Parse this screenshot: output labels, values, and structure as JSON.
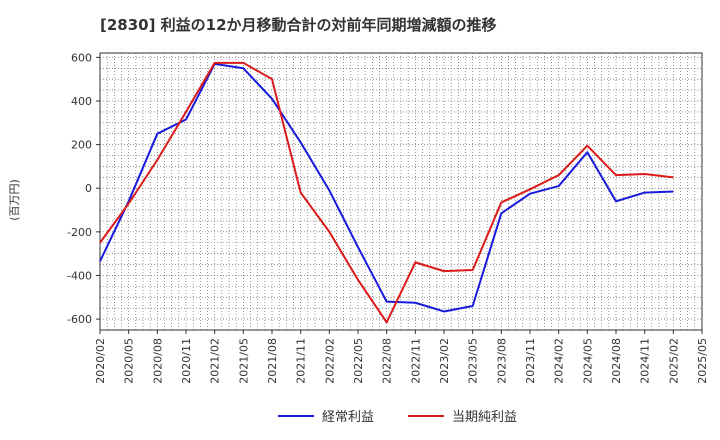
{
  "chart_data": {
    "type": "line",
    "title": "[2830]  利益の12か月移動合計の対前年同期増減額の推移",
    "ylabel": "(百万円)",
    "xlabel": "",
    "ylim": [
      -650,
      620
    ],
    "yticks": [
      600,
      400,
      200,
      0,
      -200,
      -400,
      -600
    ],
    "x_ticks": [
      "2020/02",
      "2020/05",
      "2020/08",
      "2020/11",
      "2021/02",
      "2021/05",
      "2021/08",
      "2021/11",
      "2022/02",
      "2022/05",
      "2022/08",
      "2022/11",
      "2023/02",
      "2023/05",
      "2023/08",
      "2023/11",
      "2024/02",
      "2024/05",
      "2024/08",
      "2024/11",
      "2025/02",
      "2025/05"
    ],
    "grid": true,
    "legend_position": "bottom-center",
    "series": [
      {
        "name": "経常利益",
        "color": "#1a1adc",
        "values": [
          -335,
          -60,
          250,
          315,
          570,
          550,
          410,
          210,
          -10,
          -270,
          -520,
          -525,
          -565,
          -540,
          -115,
          -25,
          10,
          165,
          -60,
          -20,
          -15
        ]
      },
      {
        "name": "当期純利益",
        "color": "#dc1a1a",
        "values": [
          -250,
          -70,
          130,
          350,
          575,
          575,
          500,
          -20,
          -200,
          -420,
          -615,
          -340,
          -380,
          -375,
          -65,
          -5,
          60,
          195,
          60,
          65,
          50
        ]
      }
    ]
  }
}
